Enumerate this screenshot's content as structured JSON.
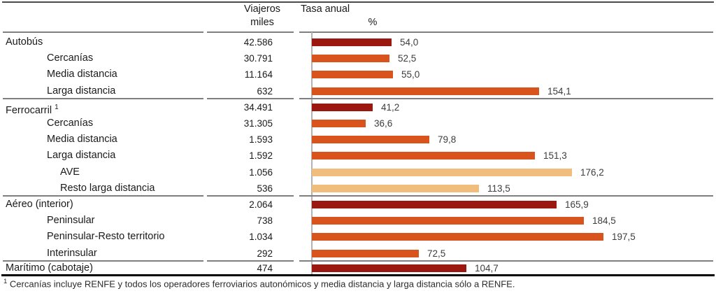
{
  "header": {
    "travelers_line1": "Viajeros",
    "travelers_line2": "miles",
    "rate_line1": "Tasa anual",
    "rate_line2": "%"
  },
  "colors": {
    "main": "#9A1810",
    "sub": "#D9541C",
    "subsub": "#F1BD7C"
  },
  "rows": [
    {
      "label": "Autobús",
      "level": "main",
      "travelers": "42.586",
      "rate_label": "54,0",
      "rate_value": 54.0,
      "separator_above": false
    },
    {
      "label": "Cercanías",
      "level": "sub",
      "travelers": "30.791",
      "rate_label": "52,5",
      "rate_value": 52.5,
      "separator_above": false
    },
    {
      "label": "Media distancia",
      "level": "sub",
      "travelers": "11.164",
      "rate_label": "55,0",
      "rate_value": 55.0,
      "separator_above": false
    },
    {
      "label": "Larga distancia",
      "level": "sub",
      "travelers": "632",
      "rate_label": "154,1",
      "rate_value": 154.1,
      "separator_above": false
    },
    {
      "label": "Ferrocarril",
      "sup": "1",
      "level": "main",
      "travelers": "34.491",
      "rate_label": "41,2",
      "rate_value": 41.2,
      "separator_above": true
    },
    {
      "label": "Cercanías",
      "level": "sub",
      "travelers": "31.305",
      "rate_label": "36,6",
      "rate_value": 36.6,
      "separator_above": false
    },
    {
      "label": "Media distancia",
      "level": "sub",
      "travelers": "1.593",
      "rate_label": "79,8",
      "rate_value": 79.8,
      "separator_above": false
    },
    {
      "label": "Larga distancia",
      "level": "sub",
      "travelers": "1.592",
      "rate_label": "151,3",
      "rate_value": 151.3,
      "separator_above": false
    },
    {
      "label": "AVE",
      "level": "subsub",
      "travelers": "1.056",
      "rate_label": "176,2",
      "rate_value": 176.2,
      "separator_above": false
    },
    {
      "label": "Resto larga distancia",
      "level": "subsub",
      "travelers": "536",
      "rate_label": "113,5",
      "rate_value": 113.5,
      "separator_above": false
    },
    {
      "label": "Aéreo (interior)",
      "level": "main",
      "travelers": "2.064",
      "rate_label": "165,9",
      "rate_value": 165.9,
      "separator_above": true
    },
    {
      "label": "Peninsular",
      "level": "sub",
      "travelers": "738",
      "rate_label": "184,5",
      "rate_value": 184.5,
      "separator_above": false
    },
    {
      "label": "Peninsular-Resto territorio",
      "level": "sub",
      "travelers": "1.034",
      "rate_label": "197,5",
      "rate_value": 197.5,
      "separator_above": false
    },
    {
      "label": "Interinsular",
      "level": "sub",
      "travelers": "292",
      "rate_label": "72,5",
      "rate_value": 72.5,
      "separator_above": false
    },
    {
      "label": "Marítimo (cabotaje)",
      "level": "main",
      "travelers": "474",
      "rate_label": "104,7",
      "rate_value": 104.7,
      "separator_above": true
    }
  ],
  "footnote": {
    "marker": "1",
    "text": "Cercanías incluye RENFE y todos los operadores ferroviarios autonómicos y media distancia y larga distancia sólo a RENFE."
  },
  "chart_data": {
    "type": "bar",
    "orientation": "horizontal",
    "title": "",
    "xlabel": "%",
    "ylabel": "",
    "xlim": [
      0,
      270
    ],
    "grid": false,
    "legend": "none",
    "categories": [
      "Autobús",
      "Cercanías (autobús)",
      "Media distancia (autobús)",
      "Larga distancia (autobús)",
      "Ferrocarril",
      "Cercanías (ferrocarril)",
      "Media distancia (ferrocarril)",
      "Larga distancia (ferrocarril)",
      "AVE",
      "Resto larga distancia",
      "Aéreo (interior)",
      "Peninsular",
      "Peninsular-Resto territorio",
      "Interinsular",
      "Marítimo (cabotaje)"
    ],
    "series": [
      {
        "name": "Viajeros miles",
        "values": [
          42586,
          30791,
          11164,
          632,
          34491,
          31305,
          1593,
          1592,
          1056,
          536,
          2064,
          738,
          1034,
          292,
          474
        ]
      },
      {
        "name": "Tasa anual %",
        "values": [
          54.0,
          52.5,
          55.0,
          154.1,
          41.2,
          36.6,
          79.8,
          151.3,
          176.2,
          113.5,
          165.9,
          184.5,
          197.5,
          72.5,
          104.7
        ]
      }
    ]
  }
}
